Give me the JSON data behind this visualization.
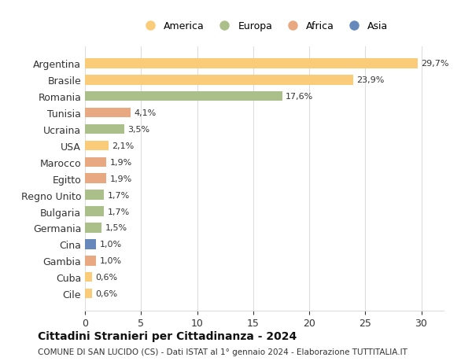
{
  "categories": [
    "Argentina",
    "Brasile",
    "Romania",
    "Tunisia",
    "Ucraina",
    "USA",
    "Marocco",
    "Egitto",
    "Regno Unito",
    "Bulgaria",
    "Germania",
    "Cina",
    "Gambia",
    "Cuba",
    "Cile"
  ],
  "values": [
    29.7,
    23.9,
    17.6,
    4.1,
    3.5,
    2.1,
    1.9,
    1.9,
    1.7,
    1.7,
    1.5,
    1.0,
    1.0,
    0.6,
    0.6
  ],
  "labels": [
    "29,7%",
    "23,9%",
    "17,6%",
    "4,1%",
    "3,5%",
    "2,1%",
    "1,9%",
    "1,9%",
    "1,7%",
    "1,7%",
    "1,5%",
    "1,0%",
    "1,0%",
    "0,6%",
    "0,6%"
  ],
  "colors": [
    "#FACC7A",
    "#FACC7A",
    "#AABF8A",
    "#E8A882",
    "#AABF8A",
    "#FACC7A",
    "#E8A882",
    "#E8A882",
    "#AABF8A",
    "#AABF8A",
    "#AABF8A",
    "#6688BB",
    "#E8A882",
    "#FACC7A",
    "#FACC7A"
  ],
  "legend_labels": [
    "America",
    "Europa",
    "Africa",
    "Asia"
  ],
  "legend_colors": [
    "#FACC7A",
    "#AABF8A",
    "#E8A882",
    "#6688BB"
  ],
  "title": "Cittadini Stranieri per Cittadinanza - 2024",
  "subtitle": "COMUNE DI SAN LUCIDO (CS) - Dati ISTAT al 1° gennaio 2024 - Elaborazione TUTTITALIA.IT",
  "xlim": [
    0,
    32
  ],
  "xticks": [
    0,
    5,
    10,
    15,
    20,
    25,
    30
  ],
  "bg_color": "#ffffff",
  "grid_color": "#dddddd"
}
